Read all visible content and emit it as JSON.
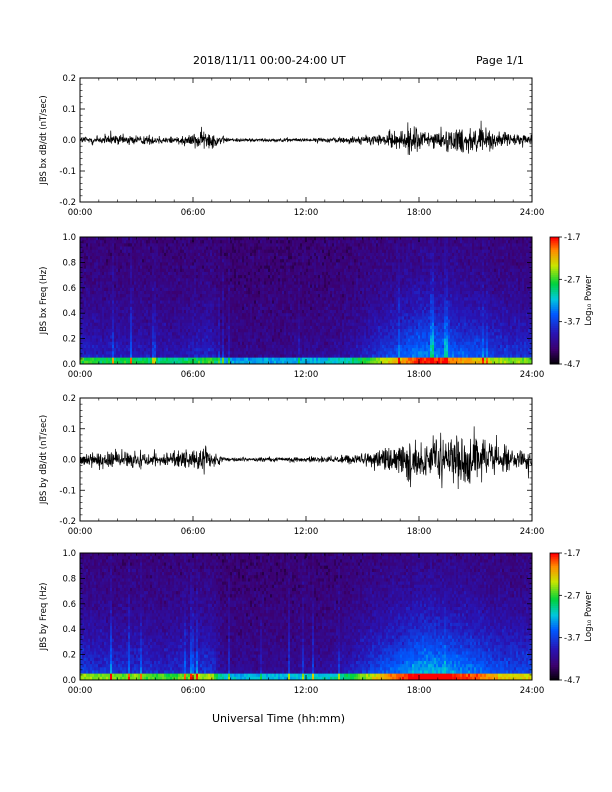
{
  "header": {
    "title": "2018/11/11  00:00-24:00 UT",
    "page": "Page 1/1"
  },
  "xlabel": "Universal Time (hh:mm)",
  "chart_data": [
    {
      "type": "line",
      "ylabel": "JBS bx dB/dt (nT/sec)",
      "xlim": [
        0,
        24
      ],
      "ylim": [
        -0.2,
        0.2
      ],
      "x_ticks": [
        "00:00",
        "06:00",
        "12:00",
        "18:00",
        "24:00"
      ],
      "y_ticks": [
        "-0.2",
        "-0.1",
        "0.0",
        "0.1",
        "0.2"
      ],
      "y_tick_values": [
        -0.2,
        -0.1,
        0.0,
        0.1,
        0.2
      ],
      "amplitude_envelope": {
        "hours": [
          0,
          1,
          2,
          3,
          4,
          5,
          6,
          6.5,
          7,
          7.5,
          8,
          9,
          10,
          11,
          12,
          13,
          14,
          15,
          16,
          17,
          17.5,
          18,
          19,
          20,
          21,
          22,
          23,
          24
        ],
        "amp": [
          0.02,
          0.025,
          0.025,
          0.025,
          0.02,
          0.02,
          0.03,
          0.05,
          0.04,
          0.02,
          0.008,
          0.008,
          0.008,
          0.008,
          0.008,
          0.01,
          0.015,
          0.02,
          0.03,
          0.04,
          0.08,
          0.05,
          0.04,
          0.06,
          0.07,
          0.04,
          0.03,
          0.025
        ]
      }
    },
    {
      "type": "heatmap",
      "ylabel": "JBS bx Freq (Hz)",
      "xlim": [
        0,
        24
      ],
      "ylim": [
        0,
        1.0
      ],
      "x_ticks": [
        "00:00",
        "06:00",
        "12:00",
        "18:00",
        "24:00"
      ],
      "y_ticks": [
        "0.0",
        "0.2",
        "0.4",
        "0.6",
        "0.8",
        "1.0"
      ],
      "y_tick_values": [
        0.0,
        0.2,
        0.4,
        0.6,
        0.8,
        1.0
      ],
      "colorbar": {
        "label": "Log₁₀ Power",
        "ticks": [
          "-1.7",
          "-2.7",
          "-3.7",
          "-4.7"
        ],
        "tick_values": [
          -1.7,
          -2.7,
          -3.7,
          -4.7
        ],
        "range": [
          -4.7,
          -1.7
        ]
      },
      "activity": {
        "hours": [
          0,
          1,
          2,
          3,
          4,
          5,
          6,
          7,
          7.5,
          8,
          9,
          10,
          11,
          12,
          13,
          14,
          15,
          16,
          17,
          18,
          19,
          20,
          21,
          22,
          23,
          24
        ],
        "activity": [
          0.35,
          0.3,
          0.3,
          0.3,
          0.25,
          0.25,
          0.3,
          0.35,
          0.15,
          0.12,
          0.12,
          0.12,
          0.12,
          0.15,
          0.15,
          0.2,
          0.3,
          0.45,
          0.55,
          0.7,
          0.7,
          0.6,
          0.55,
          0.45,
          0.4,
          0.4
        ]
      }
    },
    {
      "type": "line",
      "ylabel": "JBS by dB/dt (nT/sec)",
      "xlim": [
        0,
        24
      ],
      "ylim": [
        -0.2,
        0.2
      ],
      "x_ticks": [
        "00:00",
        "06:00",
        "12:00",
        "18:00",
        "24:00"
      ],
      "y_ticks": [
        "-0.2",
        "-0.1",
        "0.0",
        "0.1",
        "0.2"
      ],
      "y_tick_values": [
        -0.2,
        -0.1,
        0.0,
        0.1,
        0.2
      ],
      "amplitude_envelope": {
        "hours": [
          0,
          1,
          2,
          3,
          4,
          5,
          6,
          6.5,
          7,
          7.5,
          8,
          9,
          10,
          11,
          12,
          13,
          14,
          15,
          16,
          17,
          17.5,
          18,
          19,
          20,
          21,
          22,
          23,
          24
        ],
        "amp": [
          0.03,
          0.04,
          0.04,
          0.04,
          0.035,
          0.035,
          0.045,
          0.06,
          0.05,
          0.02,
          0.01,
          0.01,
          0.01,
          0.01,
          0.01,
          0.015,
          0.02,
          0.035,
          0.05,
          0.07,
          0.1,
          0.08,
          0.09,
          0.12,
          0.11,
          0.07,
          0.05,
          0.04
        ]
      }
    },
    {
      "type": "heatmap",
      "ylabel": "JBS by Freq (Hz)",
      "xlim": [
        0,
        24
      ],
      "ylim": [
        0,
        1.0
      ],
      "x_ticks": [
        "00:00",
        "06:00",
        "12:00",
        "18:00",
        "24:00"
      ],
      "y_ticks": [
        "0.0",
        "0.2",
        "0.4",
        "0.6",
        "0.8",
        "1.0"
      ],
      "y_tick_values": [
        0.0,
        0.2,
        0.4,
        0.6,
        0.8,
        1.0
      ],
      "colorbar": {
        "label": "Log₁₀ Power",
        "ticks": [
          "-1.7",
          "-2.7",
          "-3.7",
          "-4.7"
        ],
        "tick_values": [
          -1.7,
          -2.7,
          -3.7,
          -4.7
        ],
        "range": [
          -4.7,
          -1.7
        ]
      },
      "activity": {
        "hours": [
          0,
          1,
          2,
          3,
          4,
          5,
          6,
          7,
          7.5,
          8,
          9,
          10,
          11,
          12,
          13,
          14,
          15,
          16,
          17,
          18,
          19,
          20,
          21,
          22,
          23,
          24
        ],
        "activity": [
          0.45,
          0.4,
          0.4,
          0.4,
          0.35,
          0.35,
          0.4,
          0.45,
          0.2,
          0.15,
          0.15,
          0.15,
          0.15,
          0.18,
          0.18,
          0.25,
          0.4,
          0.55,
          0.65,
          0.8,
          0.8,
          0.7,
          0.65,
          0.55,
          0.5,
          0.5
        ]
      }
    }
  ]
}
